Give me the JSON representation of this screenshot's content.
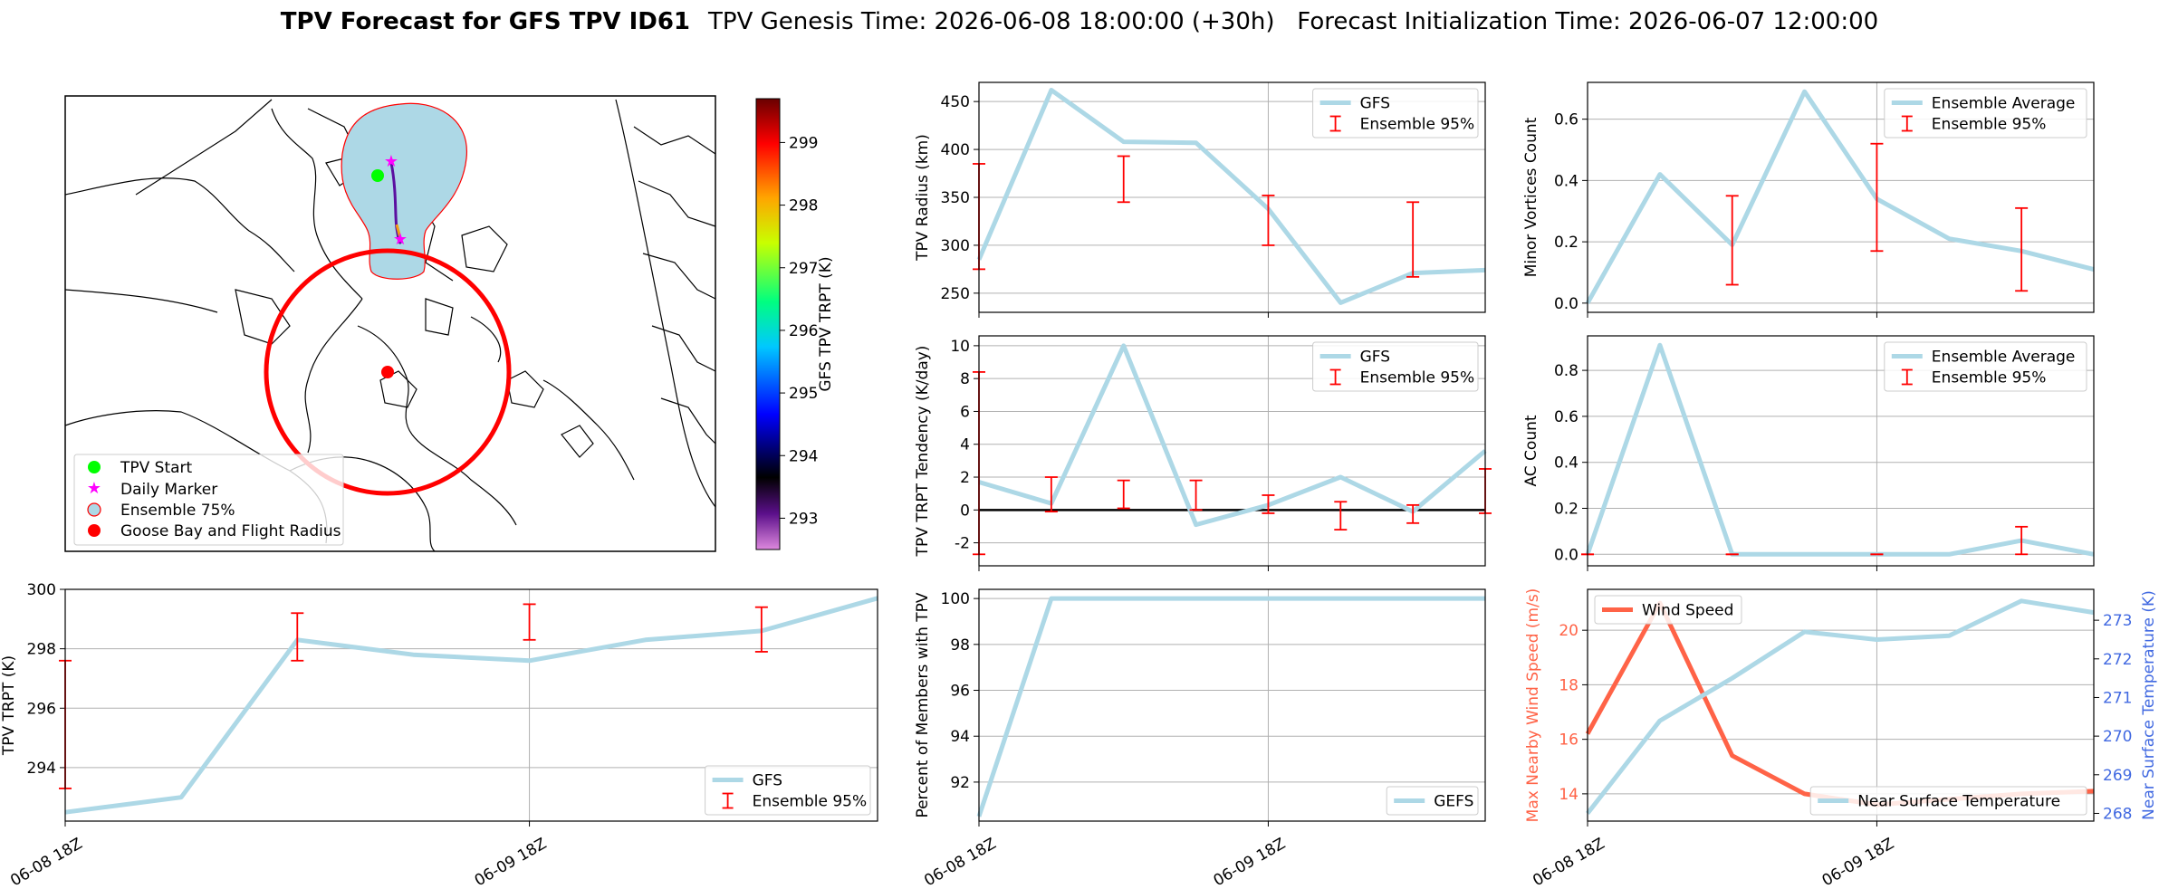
{
  "title": {
    "bold": "TPV Forecast for GFS TPV ID61",
    "rest": "TPV Genesis Time: 2026-06-08 18:00:00 (+30h)   Forecast Initialization Time: 2026-06-07 12:00:00"
  },
  "colorbar": {
    "label": "GFS TPV TRPT (K)",
    "ticks": [
      293,
      294,
      295,
      296,
      297,
      298,
      299
    ],
    "range": [
      292.5,
      299.7
    ]
  },
  "map_legend": [
    "TPV Start",
    "Daily Marker",
    "Ensemble 75%",
    "Goose Bay and Flight Radius"
  ],
  "x_ticks": [
    "06-08 18Z",
    "06-09 18Z"
  ],
  "chart_data": [
    {
      "id": "radius",
      "type": "line",
      "xlabel": "",
      "ylabel": "TPV Radius (km)",
      "ylim": [
        230,
        470
      ],
      "grid": true,
      "legend": "top-right",
      "y_ticks": [
        250,
        300,
        350,
        400,
        450
      ],
      "series": [
        {
          "name": "GFS",
          "values": [
            285,
            462,
            408,
            407,
            338,
            240,
            271,
            274
          ]
        }
      ],
      "errorbars": {
        "name": "Ensemble 95%",
        "points": [
          {
            "x": 0,
            "lo": 275,
            "hi": 385
          },
          {
            "x": 2,
            "lo": 345,
            "hi": 393
          },
          {
            "x": 4,
            "lo": 300,
            "hi": 352
          },
          {
            "x": 6,
            "lo": 267,
            "hi": 345
          }
        ]
      }
    },
    {
      "id": "minor",
      "type": "line",
      "xlabel": "",
      "ylabel": "Minor Vortices Count",
      "ylim": [
        -0.03,
        0.72
      ],
      "grid": true,
      "legend": "top-right",
      "y_ticks": [
        "0.0",
        "0.2",
        "0.4",
        "0.6"
      ],
      "series": [
        {
          "name": "Ensemble Average",
          "values": [
            0.0,
            0.42,
            0.19,
            0.69,
            0.34,
            0.21,
            0.17,
            0.11
          ]
        }
      ],
      "errorbars": {
        "name": "Ensemble 95%",
        "points": [
          {
            "x": 2,
            "lo": 0.06,
            "hi": 0.35
          },
          {
            "x": 4,
            "lo": 0.17,
            "hi": 0.52
          },
          {
            "x": 6,
            "lo": 0.04,
            "hi": 0.31
          }
        ]
      }
    },
    {
      "id": "tendency",
      "type": "line",
      "xlabel": "",
      "ylabel": "TPV TRPT Tendency (K/day)",
      "ylim": [
        -3.4,
        10.6
      ],
      "grid": true,
      "legend": "top-right",
      "y_ticks": [
        -2,
        0,
        2,
        4,
        6,
        8,
        10
      ],
      "zero_line": true,
      "series": [
        {
          "name": "GFS",
          "values": [
            1.7,
            0.4,
            10.0,
            -0.9,
            0.3,
            2.0,
            -0.1,
            3.6
          ]
        }
      ],
      "errorbars": {
        "name": "Ensemble 95%",
        "points": [
          {
            "x": 0,
            "lo": -2.7,
            "hi": 8.4
          },
          {
            "x": 1,
            "lo": -0.1,
            "hi": 2.0
          },
          {
            "x": 2,
            "lo": 0.1,
            "hi": 1.8
          },
          {
            "x": 3,
            "lo": 0.0,
            "hi": 1.8
          },
          {
            "x": 4,
            "lo": -0.2,
            "hi": 0.9
          },
          {
            "x": 5,
            "lo": -1.2,
            "hi": 0.5
          },
          {
            "x": 6,
            "lo": -0.8,
            "hi": 0.3
          },
          {
            "x": 7,
            "lo": -0.2,
            "hi": 2.5
          }
        ]
      }
    },
    {
      "id": "ac",
      "type": "line",
      "xlabel": "",
      "ylabel": "AC Count",
      "ylim": [
        -0.05,
        0.95
      ],
      "grid": true,
      "legend": "top-right",
      "y_ticks": [
        "0.0",
        "0.2",
        "0.4",
        "0.6",
        "0.8"
      ],
      "series": [
        {
          "name": "Ensemble Average",
          "values": [
            0.0,
            0.91,
            0.0,
            0.0,
            0.0,
            0.0,
            0.06,
            0.0
          ]
        }
      ],
      "errorbars": {
        "name": "Ensemble 95%",
        "points": [
          {
            "x": 0,
            "lo": 0.0,
            "hi": 0.0
          },
          {
            "x": 2,
            "lo": 0.0,
            "hi": 0.0
          },
          {
            "x": 4,
            "lo": 0.0,
            "hi": 0.0
          },
          {
            "x": 6,
            "lo": 0.0,
            "hi": 0.12
          }
        ]
      }
    },
    {
      "id": "trpt",
      "type": "line",
      "xlabel": "",
      "ylabel": "TPV TRPT (K)",
      "ylim": [
        292.2,
        300.0
      ],
      "grid": true,
      "legend": "bottom-right",
      "y_ticks": [
        294,
        296,
        298,
        300
      ],
      "series": [
        {
          "name": "GFS",
          "values": [
            292.5,
            293.0,
            298.3,
            297.8,
            297.6,
            298.3,
            298.6,
            299.7
          ]
        }
      ],
      "errorbars": {
        "name": "Ensemble 95%",
        "points": [
          {
            "x": 0,
            "lo": 293.3,
            "hi": 297.6
          },
          {
            "x": 2,
            "lo": 297.6,
            "hi": 299.2
          },
          {
            "x": 4,
            "lo": 298.3,
            "hi": 299.5
          },
          {
            "x": 6,
            "lo": 297.9,
            "hi": 299.4
          }
        ]
      }
    },
    {
      "id": "percent",
      "type": "line",
      "xlabel": "",
      "ylabel": "Percent of Members with TPV",
      "ylim": [
        90.3,
        100.4
      ],
      "grid": true,
      "legend": "bottom-right",
      "y_ticks": [
        92,
        94,
        96,
        98,
        100
      ],
      "series": [
        {
          "name": "GEFS",
          "values": [
            90.5,
            100,
            100,
            100,
            100,
            100,
            100,
            100
          ]
        }
      ]
    },
    {
      "id": "wind",
      "type": "line",
      "xlabel": "",
      "grid": true,
      "ylabel": "Max Nearby Wind Speed (m/s)",
      "ylim": [
        13.0,
        21.5
      ],
      "y_ticks": [
        14,
        16,
        18,
        20
      ],
      "ylabel_right": "Near Surface Temperature (K)",
      "ylim_right": [
        267.8,
        273.8
      ],
      "y_ticks_right": [
        268,
        269,
        270,
        271,
        272,
        273
      ],
      "series": [
        {
          "name": "Wind Speed",
          "axis": "left",
          "color": "#ff6347",
          "values": [
            16.2,
            21.0,
            15.4,
            14.0,
            13.6,
            13.8,
            14.0,
            14.1
          ]
        },
        {
          "name": "Near Surface Temperature",
          "axis": "right",
          "color": "#add8e6",
          "values": [
            268.0,
            270.4,
            271.5,
            272.7,
            272.5,
            272.6,
            273.5,
            273.2
          ]
        }
      ],
      "legend_left": "top-left",
      "legend_right": "bottom-right"
    }
  ],
  "colors": {
    "line": "#add8e6",
    "error": "#ff0000",
    "wind": "#ff6347",
    "temp_axis": "#4169e1"
  }
}
